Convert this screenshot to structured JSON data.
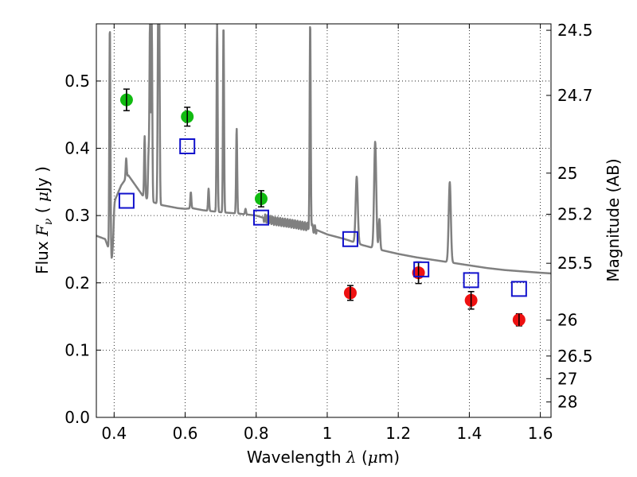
{
  "chart_data": {
    "type": "scatter",
    "xlabel": {
      "pre": "Wavelength  ",
      "sym": "λ",
      "post": " (",
      "mu": "μ",
      "unit": "m)"
    },
    "ylabel": {
      "pre": "Flux  ",
      "sym": "F",
      "sub": "ν",
      "post": "  ( ",
      "mu": "μ",
      "unit": "Jy )"
    },
    "y2label": "Magnitude (AB)",
    "xlim": [
      0.35,
      1.63
    ],
    "ylim": [
      0.0,
      0.585
    ],
    "grid": true,
    "x_ticks": [
      {
        "v": 0.4,
        "label": "0.4"
      },
      {
        "v": 0.6,
        "label": "0.6"
      },
      {
        "v": 0.8,
        "label": "0.8"
      },
      {
        "v": 1.0,
        "label": "1"
      },
      {
        "v": 1.2,
        "label": "1.2"
      },
      {
        "v": 1.4,
        "label": "1.4"
      },
      {
        "v": 1.6,
        "label": "1.6"
      }
    ],
    "y_ticks": [
      {
        "v": 0.0,
        "label": "0.0"
      },
      {
        "v": 0.1,
        "label": "0.1"
      },
      {
        "v": 0.2,
        "label": "0.2"
      },
      {
        "v": 0.3,
        "label": "0.3"
      },
      {
        "v": 0.4,
        "label": "0.4"
      },
      {
        "v": 0.5,
        "label": "0.5"
      }
    ],
    "y2_ticks": [
      {
        "mag": 24.5,
        "label": "24.5"
      },
      {
        "mag": 24.7,
        "label": "24.7"
      },
      {
        "mag": 25.0,
        "label": "25"
      },
      {
        "mag": 25.2,
        "label": "25.2"
      },
      {
        "mag": 25.5,
        "label": "25.5"
      },
      {
        "mag": 26.0,
        "label": "26"
      },
      {
        "mag": 26.5,
        "label": "26.5"
      },
      {
        "mag": 27.0,
        "label": "27"
      },
      {
        "mag": 28.0,
        "label": "28"
      }
    ],
    "colors": {
      "green": "#11bb11",
      "red": "#ee1111",
      "blue": "#1111cc",
      "model": "#808080",
      "errorbar": "#000000"
    },
    "series": [
      {
        "marker": "circle",
        "color": "green",
        "points": [
          {
            "x": 0.435,
            "y": 0.472,
            "err": 0.016
          },
          {
            "x": 0.606,
            "y": 0.447,
            "err": 0.014
          },
          {
            "x": 0.814,
            "y": 0.325,
            "err": 0.012
          }
        ]
      },
      {
        "marker": "circle",
        "color": "red",
        "points": [
          {
            "x": 1.065,
            "y": 0.185,
            "err": 0.011
          },
          {
            "x": 1.257,
            "y": 0.215,
            "err": 0.016
          },
          {
            "x": 1.405,
            "y": 0.174,
            "err": 0.013
          },
          {
            "x": 1.54,
            "y": 0.145,
            "err": 0.009
          }
        ]
      },
      {
        "marker": "square",
        "color": "blue",
        "points": [
          {
            "x": 0.435,
            "y": 0.322
          },
          {
            "x": 0.606,
            "y": 0.403
          },
          {
            "x": 0.814,
            "y": 0.297
          },
          {
            "x": 1.065,
            "y": 0.265
          },
          {
            "x": 1.265,
            "y": 0.22
          },
          {
            "x": 1.405,
            "y": 0.204
          },
          {
            "x": 1.54,
            "y": 0.191
          }
        ]
      }
    ],
    "model_sed": {
      "continuum": [
        [
          0.35,
          0.27
        ],
        [
          0.375,
          0.265
        ],
        [
          0.385,
          0.25
        ],
        [
          0.39,
          0.28
        ],
        [
          0.4,
          0.32
        ],
        [
          0.42,
          0.345
        ],
        [
          0.44,
          0.36
        ],
        [
          0.46,
          0.345
        ],
        [
          0.48,
          0.33
        ],
        [
          0.5,
          0.322
        ],
        [
          0.53,
          0.316
        ],
        [
          0.56,
          0.313
        ],
        [
          0.58,
          0.311
        ],
        [
          0.6,
          0.31
        ],
        [
          0.62,
          0.311
        ],
        [
          0.65,
          0.308
        ],
        [
          0.7,
          0.305
        ],
        [
          0.75,
          0.303
        ],
        [
          0.8,
          0.3
        ],
        [
          0.85,
          0.292
        ],
        [
          0.9,
          0.288
        ],
        [
          0.95,
          0.283
        ],
        [
          1.0,
          0.272
        ],
        [
          1.05,
          0.265
        ],
        [
          1.1,
          0.256
        ],
        [
          1.15,
          0.249
        ],
        [
          1.2,
          0.243
        ],
        [
          1.25,
          0.238
        ],
        [
          1.3,
          0.234
        ],
        [
          1.35,
          0.23
        ],
        [
          1.4,
          0.226
        ],
        [
          1.45,
          0.222
        ],
        [
          1.5,
          0.219
        ],
        [
          1.55,
          0.217
        ],
        [
          1.6,
          0.215
        ],
        [
          1.63,
          0.214
        ]
      ],
      "lines": [
        {
          "x": 0.388,
          "peak": 0.585,
          "w": 0.0015
        },
        {
          "x": 0.434,
          "peak": 0.385,
          "w": 0.0015
        },
        {
          "x": 0.486,
          "peak": 0.418,
          "w": 0.0015
        },
        {
          "x": 0.497,
          "peak": 0.39,
          "w": 0.0015
        },
        {
          "x": 0.501,
          "peak": 0.585,
          "w": 0.0015
        },
        {
          "x": 0.506,
          "peak": 0.585,
          "w": 0.0015
        },
        {
          "x": 0.524,
          "peak": 0.585,
          "w": 0.0015
        },
        {
          "x": 0.527,
          "peak": 0.585,
          "w": 0.0015
        },
        {
          "x": 0.616,
          "peak": 0.335,
          "w": 0.0015
        },
        {
          "x": 0.666,
          "peak": 0.34,
          "w": 0.0015
        },
        {
          "x": 0.69,
          "peak": 0.585,
          "w": 0.0015
        },
        {
          "x": 0.708,
          "peak": 0.585,
          "w": 0.0015
        },
        {
          "x": 0.745,
          "peak": 0.43,
          "w": 0.0015
        },
        {
          "x": 0.77,
          "peak": 0.31,
          "w": 0.0015
        },
        {
          "x": 0.952,
          "peak": 0.585,
          "w": 0.0015
        },
        {
          "x": 1.083,
          "peak": 0.358,
          "w": 0.003
        },
        {
          "x": 1.135,
          "peak": 0.41,
          "w": 0.003
        },
        {
          "x": 1.147,
          "peak": 0.295,
          "w": 0.002
        },
        {
          "x": 1.345,
          "peak": 0.35,
          "w": 0.003
        }
      ],
      "absorption": [
        {
          "x": 0.393,
          "depth": 0.05,
          "w": 0.002
        },
        {
          "x": 0.397,
          "depth": 0.04,
          "w": 0.002
        }
      ]
    }
  }
}
